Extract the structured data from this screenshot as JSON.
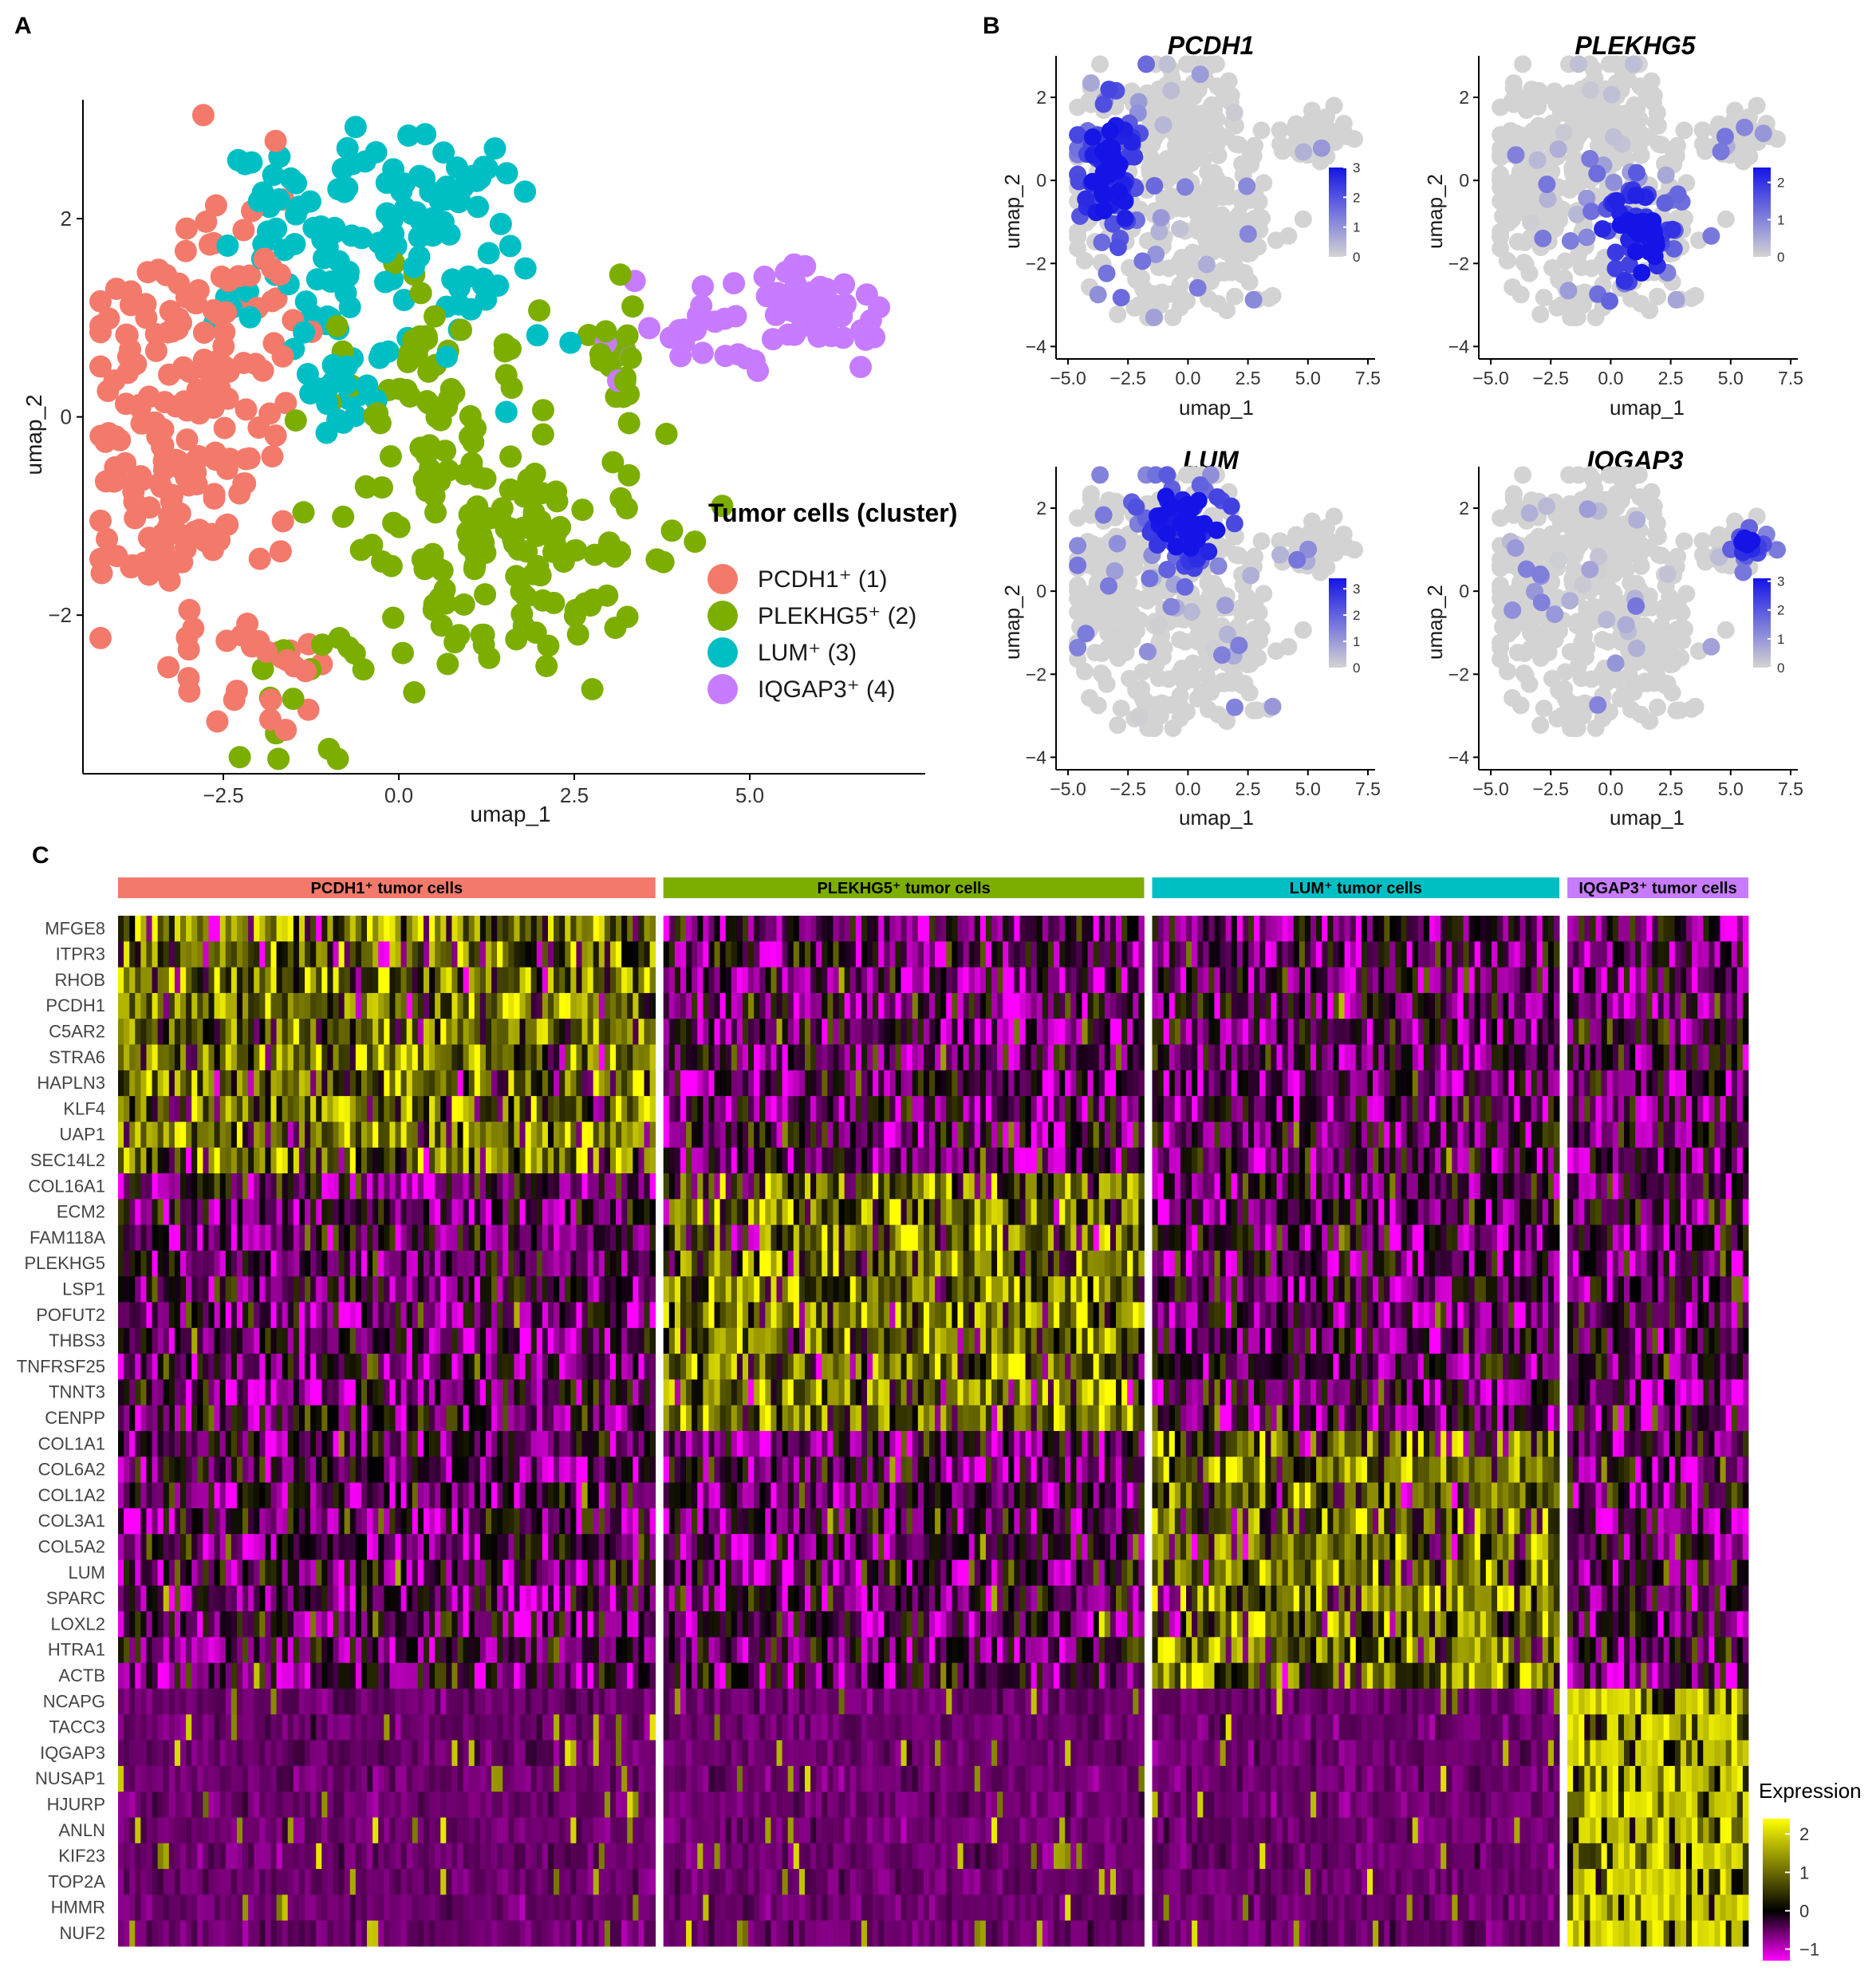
{
  "panels": {
    "a": "A",
    "b": "B",
    "c": "C"
  },
  "panelA": {
    "chart_data": {
      "type": "scatter",
      "xlabel": "umap_1",
      "ylabel": "umap_2",
      "xlim": [
        -4.5,
        7.5
      ],
      "ylim": [
        -3.6,
        3.2
      ],
      "xticks": [
        {
          "v": -2.5,
          "label": "−2.5"
        },
        {
          "v": 0,
          "label": "0.0"
        },
        {
          "v": 2.5,
          "label": "2.5"
        },
        {
          "v": 5,
          "label": "5.0"
        }
      ],
      "yticks": [
        {
          "v": 2,
          "label": "2"
        },
        {
          "v": 0,
          "label": "0"
        },
        {
          "v": -2,
          "label": "−2"
        }
      ],
      "legend_title": "Tumor cells (cluster)",
      "series": [
        {
          "name": "PCDH1⁺ (1)",
          "color": "#f37a6b",
          "n": 230,
          "regions": [
            {
              "cx": -3.3,
              "cy": -0.3,
              "sx": 0.7,
              "sy": 0.9,
              "w": 0.7
            },
            {
              "cx": -2.4,
              "cy": 1.2,
              "sx": 0.6,
              "sy": 0.8,
              "w": 0.2
            },
            {
              "cx": -1.9,
              "cy": -2.5,
              "sx": 0.5,
              "sy": 0.35,
              "w": 0.1
            }
          ]
        },
        {
          "name": "PLEKHG5⁺ (2)",
          "color": "#7cae00",
          "n": 220,
          "regions": [
            {
              "cx": 1.4,
              "cy": -1.3,
              "sx": 1.1,
              "sy": 0.75,
              "w": 0.65
            },
            {
              "cx": 0.4,
              "cy": 0.3,
              "sx": 0.7,
              "sy": 0.6,
              "w": 0.2
            },
            {
              "cx": 3.1,
              "cy": 0.6,
              "sx": 0.2,
              "sy": 0.35,
              "w": 0.08
            },
            {
              "cx": -1.2,
              "cy": -2.6,
              "sx": 0.5,
              "sy": 0.4,
              "w": 0.07
            }
          ]
        },
        {
          "name": "LUM⁺ (3)",
          "color": "#00bfc4",
          "n": 160,
          "regions": [
            {
              "cx": -1.3,
              "cy": 1.8,
              "sx": 0.6,
              "sy": 0.5,
              "w": 0.4
            },
            {
              "cx": 0.4,
              "cy": 2.2,
              "sx": 0.6,
              "sy": 0.45,
              "w": 0.35
            },
            {
              "cx": -0.9,
              "cy": 0.3,
              "sx": 0.4,
              "sy": 0.3,
              "w": 0.15
            },
            {
              "cx": 1.2,
              "cy": 1.2,
              "sx": 0.5,
              "sy": 0.4,
              "w": 0.1
            }
          ]
        },
        {
          "name": "IQGAP3⁺ (4)",
          "color": "#c77cff",
          "n": 75,
          "regions": [
            {
              "cx": 5.9,
              "cy": 1.05,
              "sx": 0.55,
              "sy": 0.22,
              "w": 0.7
            },
            {
              "cx": 4.2,
              "cy": 0.85,
              "sx": 0.6,
              "sy": 0.2,
              "w": 0.3
            }
          ]
        }
      ]
    }
  },
  "panelB": {
    "chart_data": [
      {
        "type": "scatter",
        "title": "PCDH1",
        "xlabel": "umap_1",
        "ylabel": "umap_2",
        "legend_max": 3,
        "legend_ticks": [
          {
            "v": 0,
            "label": "0"
          },
          {
            "v": 1,
            "label": "1"
          },
          {
            "v": 2,
            "label": "2"
          },
          {
            "v": 3,
            "label": "3"
          }
        ],
        "hotspot": {
          "cx": -3.2,
          "cy": 0.2,
          "sx": 1.0,
          "sy": 1.4
        }
      },
      {
        "type": "scatter",
        "title": "PLEKHG5",
        "xlabel": "umap_1",
        "ylabel": "umap_2",
        "legend_max": 2.4,
        "legend_ticks": [
          {
            "v": 0,
            "label": "0"
          },
          {
            "v": 1,
            "label": "1"
          },
          {
            "v": 2,
            "label": "2"
          }
        ],
        "hotspot": {
          "cx": 1.3,
          "cy": -1.3,
          "sx": 1.4,
          "sy": 1.0
        }
      },
      {
        "type": "scatter",
        "title": "LUM",
        "xlabel": "umap_1",
        "ylabel": "umap_2",
        "legend_max": 3.4,
        "legend_ticks": [
          {
            "v": 0,
            "label": "0"
          },
          {
            "v": 1,
            "label": "1"
          },
          {
            "v": 2,
            "label": "2"
          },
          {
            "v": 3,
            "label": "3"
          }
        ],
        "hotspot": {
          "cx": 0.0,
          "cy": 1.7,
          "sx": 1.4,
          "sy": 0.9
        }
      },
      {
        "type": "scatter",
        "title": "IQGAP3",
        "xlabel": "umap_1",
        "ylabel": "umap_2",
        "legend_max": 3.1,
        "legend_ticks": [
          {
            "v": 0,
            "label": "0"
          },
          {
            "v": 1,
            "label": "1"
          },
          {
            "v": 2,
            "label": "2"
          },
          {
            "v": 3,
            "label": "3"
          }
        ],
        "hotspot": {
          "cx": 5.8,
          "cy": 1.1,
          "sx": 0.5,
          "sy": 0.3
        }
      }
    ],
    "axis": {
      "xlim": [
        -5.5,
        7.8
      ],
      "ylim": [
        -4.3,
        3.0
      ],
      "xticks": [
        {
          "v": -5,
          "label": "−5.0"
        },
        {
          "v": -2.5,
          "label": "−2.5"
        },
        {
          "v": 0,
          "label": "0.0"
        },
        {
          "v": 2.5,
          "label": "2.5"
        },
        {
          "v": 5,
          "label": "5.0"
        },
        {
          "v": 7.5,
          "label": "7.5"
        }
      ],
      "yticks": [
        {
          "v": 2,
          "label": "2"
        },
        {
          "v": 0,
          "label": "0"
        },
        {
          "v": -2,
          "label": "−2"
        },
        {
          "v": -4,
          "label": "−4"
        }
      ]
    }
  },
  "panelC": {
    "chart_data": {
      "type": "heatmap",
      "groups": [
        {
          "label": "PCDH1⁺ tumor cells",
          "color": "#f37a6b",
          "n": 95
        },
        {
          "label": "PLEKHG5⁺ tumor cells",
          "color": "#7cae00",
          "n": 85
        },
        {
          "label": "LUM⁺ tumor cells",
          "color": "#00bfc4",
          "n": 72
        },
        {
          "label": "IQGAP3⁺ tumor cells",
          "color": "#c77cff",
          "n": 32
        }
      ],
      "genes": [
        "MFGE8",
        "ITPR3",
        "RHOB",
        "PCDH1",
        "C5AR2",
        "STRA6",
        "HAPLN3",
        "KLF4",
        "UAP1",
        "SEC14L2",
        "COL16A1",
        "ECM2",
        "FAM118A",
        "PLEKHG5",
        "LSP1",
        "POFUT2",
        "THBS3",
        "TNFRSF25",
        "TNNT3",
        "CENPP",
        "COL1A1",
        "COL6A2",
        "COL1A2",
        "COL3A1",
        "COL5A2",
        "LUM",
        "SPARC",
        "LOXL2",
        "HTRA1",
        "ACTB",
        "NCAPG",
        "TACC3",
        "IQGAP3",
        "NUSAP1",
        "HJURP",
        "ANLN",
        "KIF23",
        "TOP2A",
        "HMMR",
        "NUF2"
      ],
      "gene_group": [
        0,
        0,
        0,
        0,
        0,
        0,
        0,
        0,
        0,
        0,
        1,
        1,
        1,
        1,
        1,
        1,
        1,
        1,
        1,
        1,
        2,
        2,
        2,
        2,
        2,
        2,
        2,
        2,
        2,
        2,
        3,
        3,
        3,
        3,
        3,
        3,
        3,
        3,
        3,
        3
      ],
      "colorscale": {
        "min": -1.3,
        "max": 2.4,
        "stops": [
          "#ff00ff",
          "#000000",
          "#ffff00"
        ]
      },
      "legend_title": "Expression",
      "legend_ticks": [
        {
          "v": 2,
          "label": "2"
        },
        {
          "v": 1,
          "label": "1"
        },
        {
          "v": 0,
          "label": "0"
        },
        {
          "v": -1,
          "label": "−1"
        }
      ]
    }
  }
}
